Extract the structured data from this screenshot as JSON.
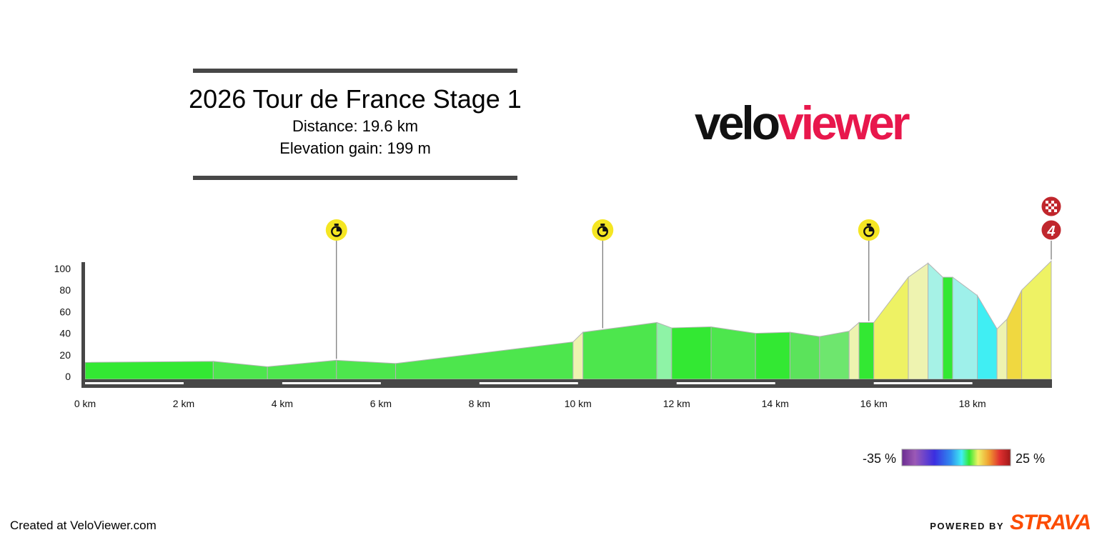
{
  "header": {
    "title": "2026 Tour de France Stage 1",
    "distance": "Distance: 19.6 km",
    "elevation": "Elevation gain: 199 m"
  },
  "logo": {
    "part1": "velo",
    "part2": "viewer"
  },
  "footer": {
    "created": "Created at VeloViewer.com",
    "powered_by": "POWERED BY",
    "brand": "STRAVA"
  },
  "legend": {
    "min_label": "-35 %",
    "max_label": "25 %"
  },
  "markers": [
    {
      "km": 5.1,
      "icon": "stopwatch-icon",
      "color": "#f5e623"
    },
    {
      "km": 10.5,
      "icon": "stopwatch-icon",
      "color": "#f5e623"
    },
    {
      "km": 15.9,
      "icon": "stopwatch-icon",
      "color": "#f5e623"
    },
    {
      "km": 19.6,
      "icon": "finish-flag-icon",
      "color": "#c0272d",
      "extra": "4"
    }
  ],
  "chart_data": {
    "type": "area",
    "xlabel": "",
    "ylabel": "",
    "xlim": [
      0,
      19.6
    ],
    "ylim": [
      0,
      100
    ],
    "x_ticks": [
      "0 km",
      "2 km",
      "4 km",
      "6 km",
      "8 km",
      "10 km",
      "12 km",
      "14 km",
      "16 km",
      "18 km"
    ],
    "y_ticks": [
      "0",
      "20",
      "40",
      "60",
      "80",
      "100"
    ],
    "profile": [
      {
        "km": 0.0,
        "ele": 13
      },
      {
        "km": 2.6,
        "ele": 14
      },
      {
        "km": 3.7,
        "ele": 9
      },
      {
        "km": 5.1,
        "ele": 15
      },
      {
        "km": 6.3,
        "ele": 12
      },
      {
        "km": 9.9,
        "ele": 32
      },
      {
        "km": 10.1,
        "ele": 41
      },
      {
        "km": 11.6,
        "ele": 50
      },
      {
        "km": 11.9,
        "ele": 45
      },
      {
        "km": 12.7,
        "ele": 46
      },
      {
        "km": 13.6,
        "ele": 40
      },
      {
        "km": 14.3,
        "ele": 41
      },
      {
        "km": 14.9,
        "ele": 37
      },
      {
        "km": 15.5,
        "ele": 42
      },
      {
        "km": 15.7,
        "ele": 50
      },
      {
        "km": 16.0,
        "ele": 50
      },
      {
        "km": 16.7,
        "ele": 92
      },
      {
        "km": 17.1,
        "ele": 105
      },
      {
        "km": 17.4,
        "ele": 92
      },
      {
        "km": 17.6,
        "ele": 92
      },
      {
        "km": 18.1,
        "ele": 75
      },
      {
        "km": 18.5,
        "ele": 44
      },
      {
        "km": 18.7,
        "ele": 53
      },
      {
        "km": 19.0,
        "ele": 80
      },
      {
        "km": 19.6,
        "ele": 107
      }
    ],
    "segment_colors": [
      "#33e833",
      "#4de64d",
      "#4de64d",
      "#4de64d",
      "#4de64d",
      "#eef3b0",
      "#4de64d",
      "#8ef3a6",
      "#33e833",
      "#4de64d",
      "#33e833",
      "#5be35b",
      "#6ee66e",
      "#eef3b0",
      "#33e833",
      "#eef264",
      "#eef3b0",
      "#a6f2e6",
      "#33e833",
      "#9ef0ea",
      "#40eef3",
      "#eef3b0",
      "#f0d840",
      "#eef264"
    ],
    "gradient_scale": {
      "min": -35,
      "max": 25,
      "colors": [
        "#6a2c91",
        "#9b59b6",
        "#3b2ee0",
        "#2f8bf0",
        "#40eef3",
        "#33e833",
        "#eef264",
        "#f0a030",
        "#e03030",
        "#a01818"
      ]
    }
  }
}
